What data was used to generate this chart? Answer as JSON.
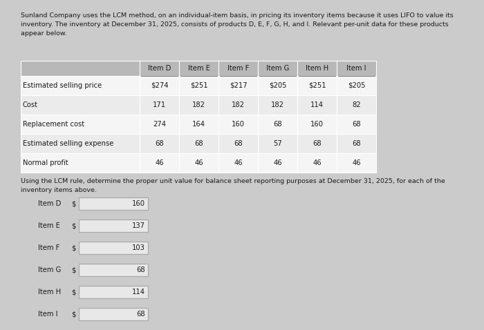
{
  "bg_color": "#cbcbcb",
  "title_text": "Sunland Company uses the LCM method, on an individual-item basis, in pricing its inventory items because it uses LIFO to value its\ninventory. The inventory at December 31, 2025, consists of products D, E, F, G, H, and I. Relevant per-unit data for these products\nappear below.",
  "table_headers": [
    "",
    "Item D",
    "Item E",
    "Item F",
    "Item G",
    "Item H",
    "Item I"
  ],
  "table_rows": [
    [
      "Estimated selling price",
      "$274",
      "$251",
      "$217",
      "$205",
      "$251",
      "$205"
    ],
    [
      "Cost",
      "171",
      "182",
      "182",
      "182",
      "114",
      "82"
    ],
    [
      "Replacement cost",
      "274",
      "164",
      "160",
      "68",
      "160",
      "68"
    ],
    [
      "Estimated selling expense",
      "68",
      "68",
      "68",
      "57",
      "68",
      "68"
    ],
    [
      "Normal profit",
      "46",
      "46",
      "46",
      "46",
      "46",
      "46"
    ]
  ],
  "lcm_text": "Using the LCM rule, determine the proper unit value for balance sheet reporting purposes at December 31, 2025, for each of the\ninventory items above.",
  "lcm_items": [
    "Item D",
    "Item E",
    "Item F",
    "Item G",
    "Item H",
    "Item I"
  ],
  "lcm_values": [
    "160",
    "137",
    "103",
    "68",
    "114",
    "68"
  ],
  "header_bg": "#b8b8b8",
  "row_bg_even": "#f5f5f5",
  "row_bg_odd": "#ebebeb",
  "input_box_color": "#e8e8e8",
  "input_box_border": "#aaaaaa",
  "text_color": "#1a1a1a",
  "font_size_title": 6.8,
  "font_size_table": 7.2,
  "font_size_lcm": 6.8,
  "font_size_item": 7.2
}
